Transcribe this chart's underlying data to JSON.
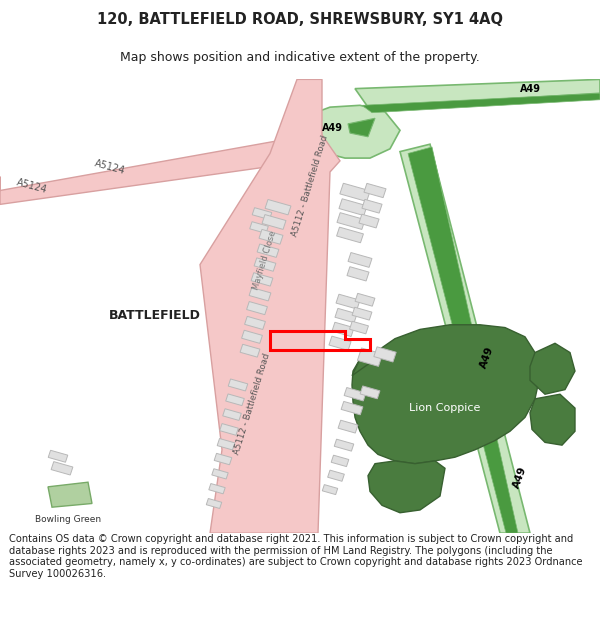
{
  "title_line1": "120, BATTLEFIELD ROAD, SHREWSBURY, SY1 4AQ",
  "title_line2": "Map shows position and indicative extent of the property.",
  "footer": "Contains OS data © Crown copyright and database right 2021. This information is subject to Crown copyright and database rights 2023 and is reproduced with the permission of HM Land Registry. The polygons (including the associated geometry, namely x, y co-ordinates) are subject to Crown copyright and database rights 2023 Ordnance Survey 100026316.",
  "bg": "#ffffff",
  "map_bg": "#f8f8f8",
  "road_pink_fill": "#f5c8c8",
  "road_pink_edge": "#d8a0a0",
  "road_green_fill": "#c8e6c0",
  "road_green_edge": "#78b870",
  "road_green_dark": "#4a9a40",
  "building_fill": "#e0e0e0",
  "building_edge": "#b8b8b8",
  "green_dark": "#4a7c3f",
  "green_mid": "#6a9e5a",
  "bowling_green": "#b0d0a0",
  "plot_red": "#ff0000",
  "text_dark": "#222222",
  "text_road": "#555555"
}
